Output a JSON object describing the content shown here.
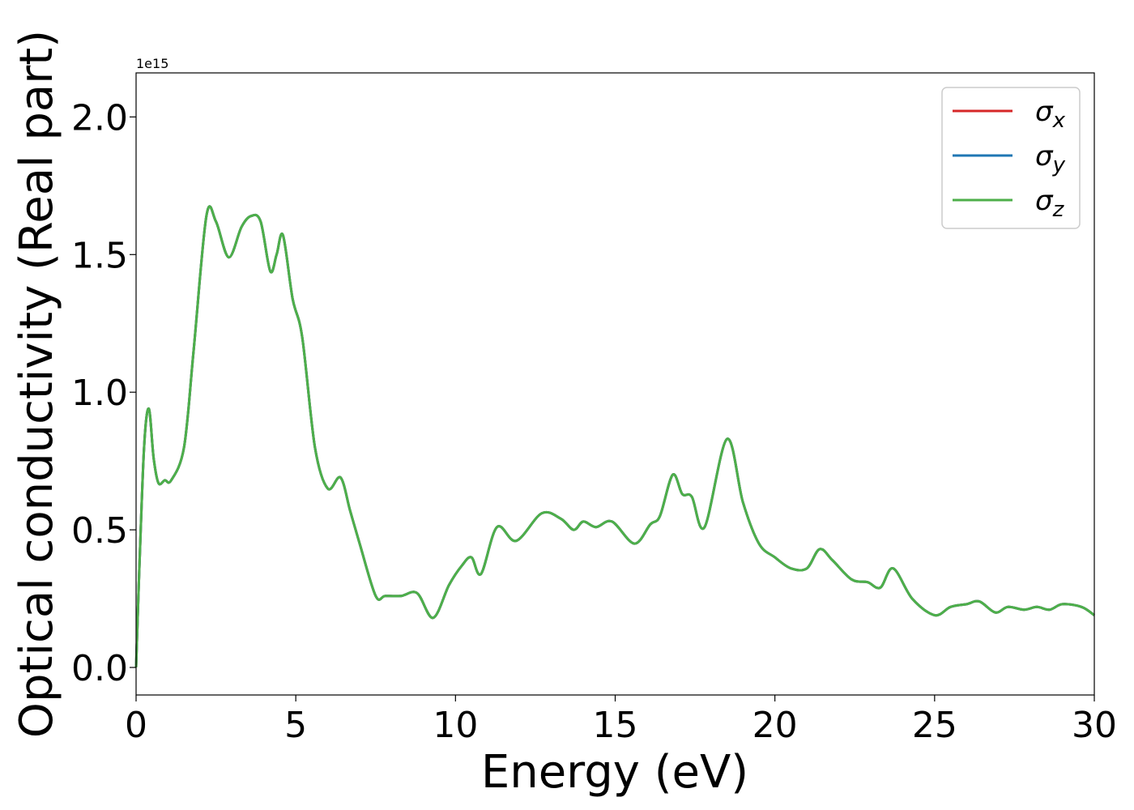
{
  "chart_data": {
    "type": "line",
    "title": "",
    "xlabel": "Energy (eV)",
    "ylabel": "Optical conductivity (Real part)",
    "y_offset_label": "1e15",
    "y_multiplier": 1000000000000000.0,
    "xlim": [
      0,
      30
    ],
    "ylim": [
      -0.1,
      2.16
    ],
    "xticks": [
      0,
      5,
      10,
      15,
      20,
      25,
      30
    ],
    "xtick_labels": [
      "0",
      "5",
      "10",
      "15",
      "20",
      "25",
      "30"
    ],
    "yticks": [
      0.0,
      0.5,
      1.0,
      1.5,
      2.0
    ],
    "ytick_labels": [
      "0.0",
      "0.5",
      "1.0",
      "1.5",
      "2.0"
    ],
    "grid": false,
    "legend_position": "top-right",
    "series": [
      {
        "name": "σx",
        "symbol": "σ",
        "subscript": "x",
        "color": "#d62728"
      },
      {
        "name": "σy",
        "symbol": "σ",
        "subscript": "y",
        "color": "#1f77b4"
      },
      {
        "name": "σz",
        "symbol": "σ",
        "subscript": "z",
        "color": "#4daf4a"
      }
    ],
    "x": [
      0,
      0.1,
      0.25,
      0.4,
      0.55,
      0.7,
      0.9,
      1.1,
      1.5,
      1.8,
      2.2,
      2.5,
      2.9,
      3.3,
      3.6,
      3.9,
      4.2,
      4.4,
      4.6,
      4.9,
      5.2,
      5.6,
      6.0,
      6.4,
      6.7,
      7.0,
      7.5,
      7.8,
      8.3,
      8.8,
      9.3,
      9.8,
      10.2,
      10.5,
      10.8,
      11.3,
      11.9,
      12.7,
      13.3,
      13.7,
      14.0,
      14.4,
      14.9,
      15.6,
      16.1,
      16.4,
      16.8,
      17.1,
      17.4,
      17.8,
      18.5,
      19.0,
      19.5,
      20.0,
      20.5,
      21.0,
      21.4,
      21.8,
      22.4,
      22.9,
      23.3,
      23.7,
      24.3,
      25.0,
      25.5,
      26.0,
      26.4,
      26.9,
      27.3,
      27.8,
      28.2,
      28.6,
      29.0,
      29.6,
      30.0
    ],
    "values": [
      0.0,
      0.35,
      0.8,
      0.94,
      0.76,
      0.67,
      0.68,
      0.68,
      0.8,
      1.15,
      1.64,
      1.62,
      1.49,
      1.6,
      1.64,
      1.62,
      1.44,
      1.5,
      1.57,
      1.34,
      1.2,
      0.8,
      0.65,
      0.69,
      0.57,
      0.45,
      0.26,
      0.26,
      0.26,
      0.27,
      0.18,
      0.3,
      0.37,
      0.4,
      0.34,
      0.51,
      0.46,
      0.56,
      0.54,
      0.5,
      0.53,
      0.51,
      0.53,
      0.45,
      0.52,
      0.55,
      0.7,
      0.63,
      0.62,
      0.51,
      0.83,
      0.6,
      0.45,
      0.4,
      0.36,
      0.36,
      0.43,
      0.39,
      0.32,
      0.31,
      0.29,
      0.36,
      0.25,
      0.19,
      0.22,
      0.23,
      0.24,
      0.2,
      0.22,
      0.21,
      0.22,
      0.21,
      0.23,
      0.22,
      0.19
    ]
  }
}
